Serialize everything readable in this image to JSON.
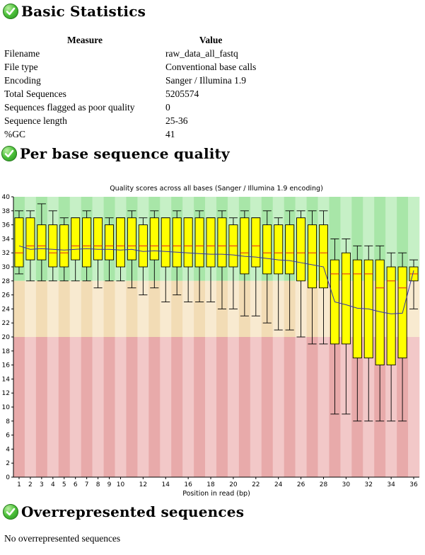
{
  "sections": {
    "basic": {
      "title": "Basic Statistics",
      "icon": "check-pass-icon"
    },
    "quality": {
      "title": "Per base sequence quality",
      "icon": "check-pass-icon"
    },
    "overrep": {
      "title": "Overrepresented sequences",
      "icon": "check-pass-icon",
      "body": "No overrepresented sequences"
    }
  },
  "stats_table": {
    "headers": [
      "Measure",
      "Value"
    ],
    "rows": [
      [
        "Filename",
        "raw_data_all_fastq"
      ],
      [
        "File type",
        "Conventional base calls"
      ],
      [
        "Encoding",
        "Sanger / Illumina 1.9"
      ],
      [
        "Total Sequences",
        "5205574"
      ],
      [
        "Sequences flagged as poor quality",
        "0"
      ],
      [
        "Sequence length",
        "25-36"
      ],
      [
        "%GC",
        "41"
      ]
    ]
  },
  "colors": {
    "good_zone": "#a8e6a8",
    "ok_zone": "#f2dcb5",
    "bad_zone": "#e8aaaa",
    "box_fill": "#ffff00",
    "median_line": "#e02020",
    "mean_line": "#3333aa"
  },
  "chart_data": {
    "type": "box",
    "title": "Quality scores across all bases (Sanger / Illumina 1.9 encoding)",
    "xlabel": "Position in read (bp)",
    "ylabel": "",
    "ylim": [
      0,
      40
    ],
    "yticks": [
      0,
      2,
      4,
      6,
      8,
      10,
      12,
      14,
      16,
      18,
      20,
      22,
      24,
      26,
      28,
      30,
      32,
      34,
      36,
      38,
      40
    ],
    "x_tick_labels": [
      "1",
      "2",
      "3",
      "4",
      "5",
      "6",
      "7",
      "8",
      "9",
      "10",
      "12",
      "14",
      "16",
      "18",
      "20",
      "22",
      "24",
      "26",
      "28",
      "30",
      "32",
      "34",
      "36"
    ],
    "x_tick_positions": [
      1,
      2,
      3,
      4,
      5,
      6,
      7,
      8,
      9,
      10,
      12,
      14,
      16,
      18,
      20,
      22,
      24,
      26,
      28,
      30,
      32,
      34,
      36
    ],
    "zones": [
      {
        "name": "good",
        "from": 28,
        "to": 40
      },
      {
        "name": "ok",
        "from": 20,
        "to": 28
      },
      {
        "name": "bad",
        "from": 0,
        "to": 20
      }
    ],
    "positions": [
      1,
      2,
      3,
      4,
      5,
      6,
      7,
      8,
      9,
      10,
      11,
      12,
      13,
      14,
      15,
      16,
      17,
      18,
      19,
      20,
      21,
      22,
      23,
      24,
      25,
      26,
      27,
      28,
      29,
      30,
      31,
      32,
      33,
      34,
      35,
      36
    ],
    "boxes": [
      {
        "low": 29,
        "q1": 30,
        "median": 32,
        "q3": 37,
        "high": 38
      },
      {
        "low": 28,
        "q1": 31,
        "median": 33,
        "q3": 37,
        "high": 38
      },
      {
        "low": 28,
        "q1": 31,
        "median": 33,
        "q3": 36,
        "high": 39
      },
      {
        "low": 28,
        "q1": 30,
        "median": 32,
        "q3": 36,
        "high": 38
      },
      {
        "low": 28,
        "q1": 30,
        "median": 32,
        "q3": 36,
        "high": 37
      },
      {
        "low": 28,
        "q1": 31,
        "median": 33,
        "q3": 37,
        "high": 37
      },
      {
        "low": 28,
        "q1": 30,
        "median": 33,
        "q3": 37,
        "high": 38
      },
      {
        "low": 27,
        "q1": 31,
        "median": 33,
        "q3": 37,
        "high": 37
      },
      {
        "low": 28,
        "q1": 31,
        "median": 33,
        "q3": 36,
        "high": 37
      },
      {
        "low": 28,
        "q1": 30,
        "median": 33,
        "q3": 37,
        "high": 37
      },
      {
        "low": 27,
        "q1": 31,
        "median": 33,
        "q3": 37,
        "high": 38
      },
      {
        "low": 26,
        "q1": 30,
        "median": 33,
        "q3": 36,
        "high": 37
      },
      {
        "low": 27,
        "q1": 31,
        "median": 33,
        "q3": 37,
        "high": 38
      },
      {
        "low": 25,
        "q1": 30,
        "median": 33,
        "q3": 37,
        "high": 37
      },
      {
        "low": 26,
        "q1": 30,
        "median": 33,
        "q3": 37,
        "high": 38
      },
      {
        "low": 25,
        "q1": 30,
        "median": 33,
        "q3": 37,
        "high": 37
      },
      {
        "low": 25,
        "q1": 30,
        "median": 33,
        "q3": 37,
        "high": 38
      },
      {
        "low": 25,
        "q1": 30,
        "median": 33,
        "q3": 37,
        "high": 37
      },
      {
        "low": 24,
        "q1": 30,
        "median": 33,
        "q3": 37,
        "high": 38
      },
      {
        "low": 24,
        "q1": 30,
        "median": 33,
        "q3": 36,
        "high": 37
      },
      {
        "low": 23,
        "q1": 29,
        "median": 32,
        "q3": 37,
        "high": 38
      },
      {
        "low": 23,
        "q1": 30,
        "median": 33,
        "q3": 37,
        "high": 37
      },
      {
        "low": 22,
        "q1": 29,
        "median": 32,
        "q3": 36,
        "high": 38
      },
      {
        "low": 21,
        "q1": 29,
        "median": 32,
        "q3": 36,
        "high": 37
      },
      {
        "low": 21,
        "q1": 29,
        "median": 32,
        "q3": 36,
        "high": 38
      },
      {
        "low": 20,
        "q1": 28,
        "median": 32,
        "q3": 37,
        "high": 38
      },
      {
        "low": 19,
        "q1": 27,
        "median": 32,
        "q3": 36,
        "high": 38
      },
      {
        "low": 19,
        "q1": 27,
        "median": 32,
        "q3": 36,
        "high": 38
      },
      {
        "low": 9,
        "q1": 19,
        "median": 29,
        "q3": 31,
        "high": 34
      },
      {
        "low": 9,
        "q1": 19,
        "median": 29,
        "q3": 32,
        "high": 34
      },
      {
        "low": 8,
        "q1": 17,
        "median": 29,
        "q3": 31,
        "high": 33
      },
      {
        "low": 8,
        "q1": 17,
        "median": 29,
        "q3": 31,
        "high": 33
      },
      {
        "low": 8,
        "q1": 16,
        "median": 27,
        "q3": 31,
        "high": 33
      },
      {
        "low": 8,
        "q1": 16,
        "median": 28,
        "q3": 30,
        "high": 32
      },
      {
        "low": 8,
        "q1": 17,
        "median": 27,
        "q3": 30,
        "high": 32
      },
      {
        "low": 24,
        "q1": 28,
        "median": 29,
        "q3": 30,
        "high": 31
      }
    ],
    "mean": [
      33,
      32.5,
      32.6,
      32.5,
      32.4,
      32.5,
      32.6,
      32.5,
      32.5,
      32.4,
      32.5,
      32.2,
      32.3,
      32.2,
      32.1,
      32.0,
      31.9,
      31.8,
      31.8,
      31.7,
      31.5,
      31.4,
      31.2,
      31.0,
      30.9,
      30.6,
      30.3,
      30.0,
      25.0,
      24.6,
      24.1,
      24.0,
      23.6,
      23.3,
      23.4,
      29.5
    ]
  }
}
